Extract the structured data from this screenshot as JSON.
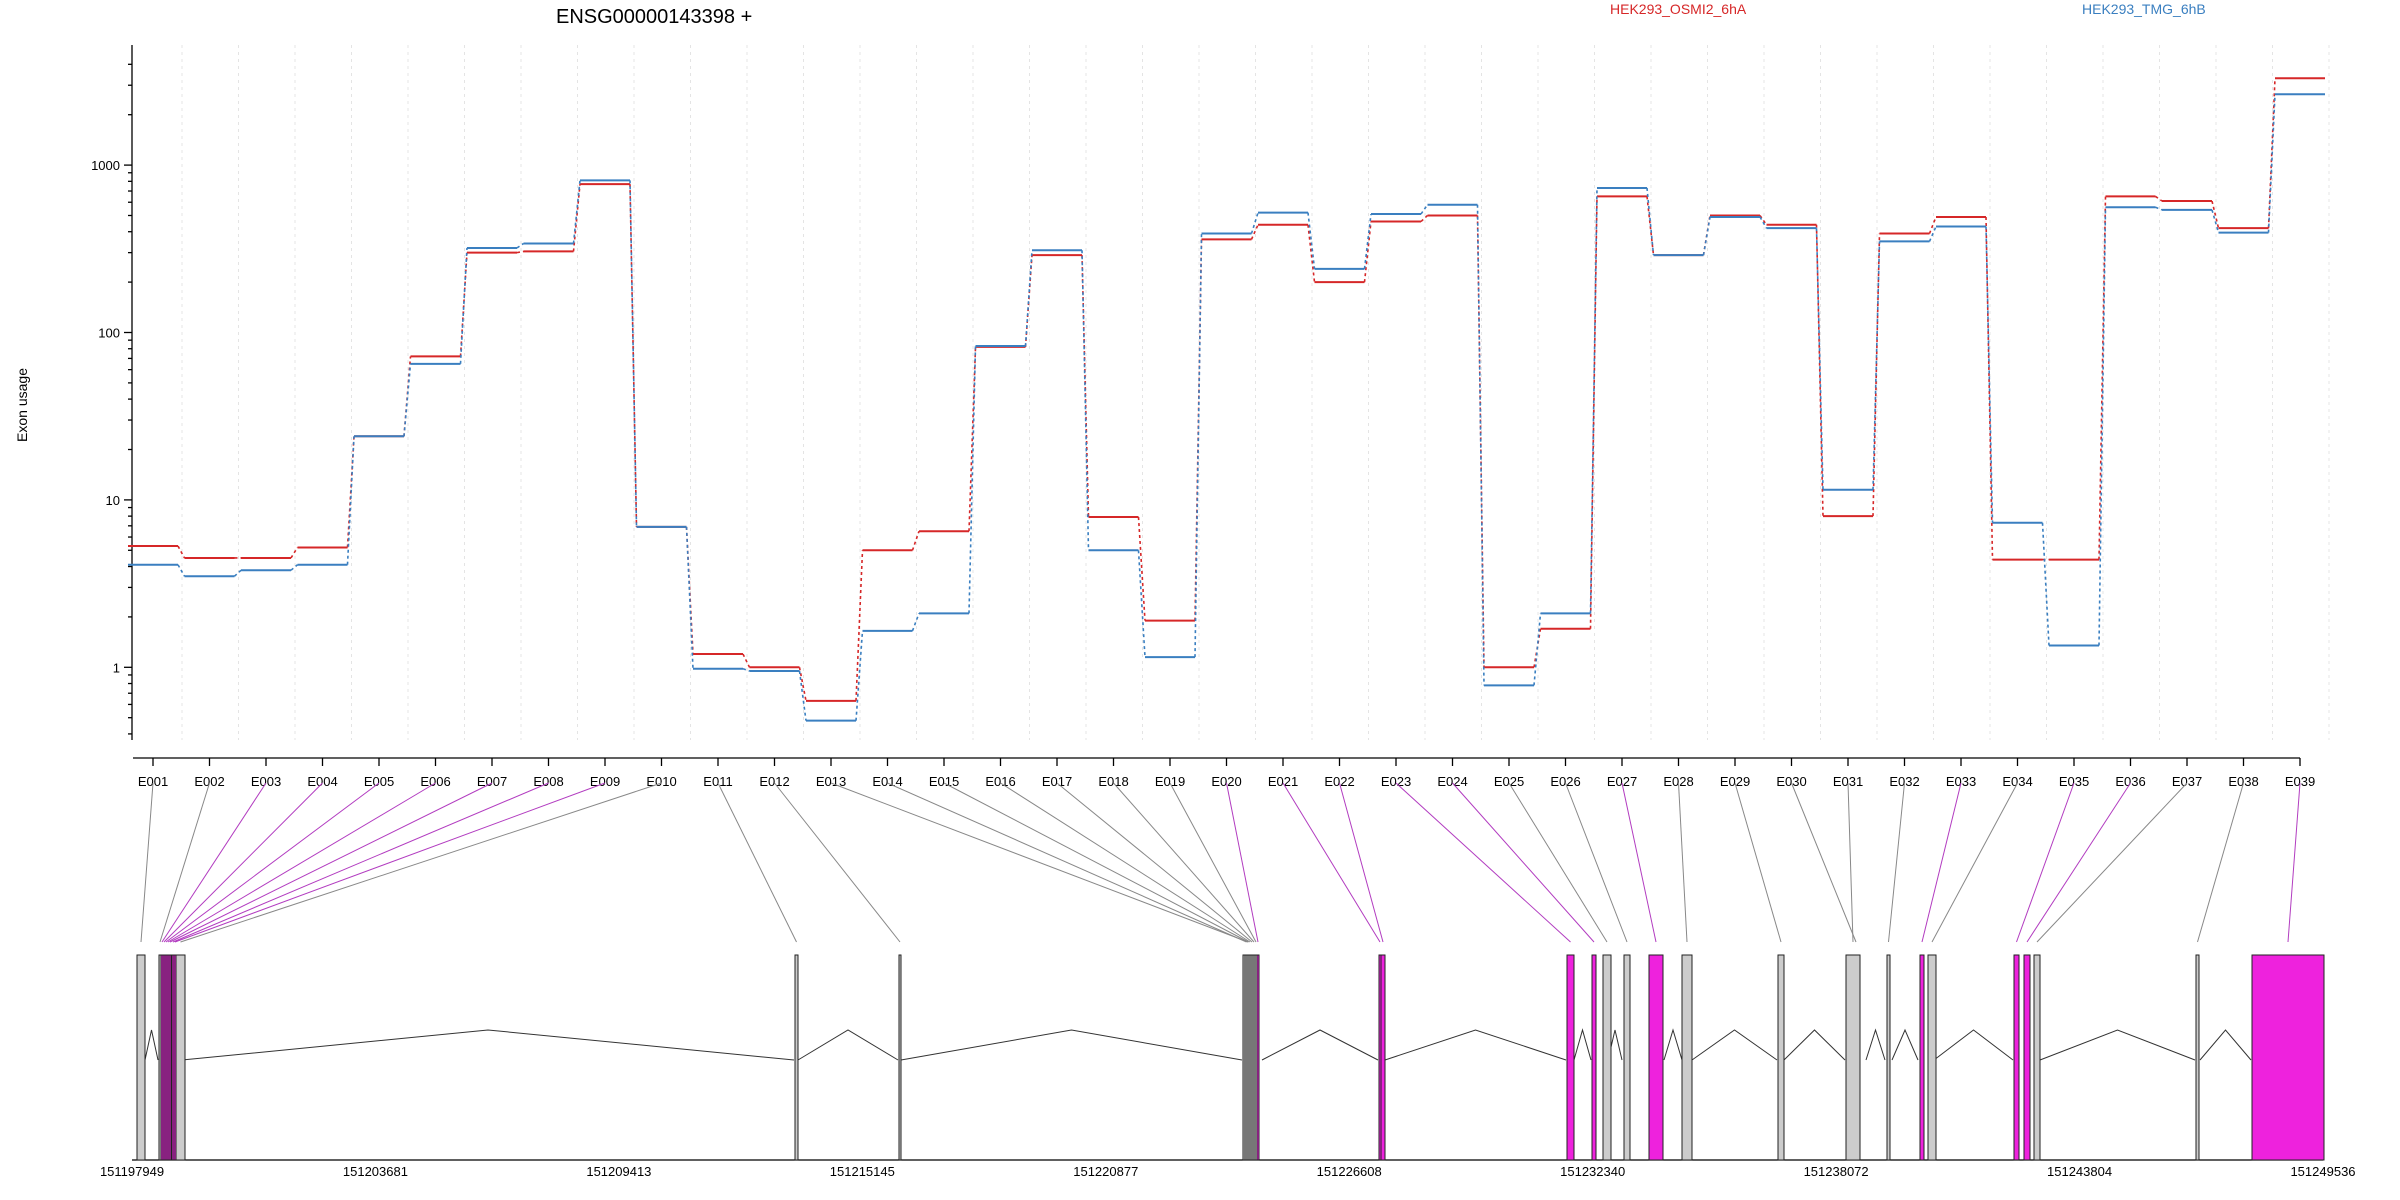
{
  "chart_data": {
    "type": "line",
    "title": "ENSG00000143398 +",
    "ylabel": "Exon usage",
    "xlabel": "",
    "y_scale": "log",
    "ylim": [
      0.35,
      4200
    ],
    "y_ticks": [
      1,
      10,
      100,
      1000
    ],
    "grid": true,
    "legend_placement": "top",
    "categories": [
      "E001",
      "E002",
      "E003",
      "E004",
      "E005",
      "E006",
      "E007",
      "E008",
      "E009",
      "E010",
      "E011",
      "E012",
      "E013",
      "E014",
      "E015",
      "E016",
      "E017",
      "E018",
      "E019",
      "E020",
      "E021",
      "E022",
      "E023",
      "E024",
      "E025",
      "E026",
      "E027",
      "E028",
      "E029",
      "E030",
      "E031",
      "E032",
      "E033",
      "E034",
      "E035",
      "E036",
      "E037",
      "E038",
      "E039"
    ],
    "series": [
      {
        "name": "HEK293_OSMI2_6hA",
        "color": "#d62728",
        "values": [
          5.3,
          4.5,
          4.5,
          5.2,
          24,
          72,
          300,
          305,
          770,
          6.9,
          1.2,
          1.0,
          0.63,
          5.0,
          6.5,
          82,
          290,
          7.9,
          1.9,
          360,
          440,
          200,
          460,
          500,
          1.0,
          1.7,
          650,
          290,
          500,
          440,
          8.0,
          390,
          490,
          4.4,
          4.4,
          650,
          610,
          420,
          3300
        ]
      },
      {
        "name": "HEK293_TMG_6hB",
        "color": "#3a7fc0",
        "values": [
          4.1,
          3.5,
          3.8,
          4.1,
          24,
          65,
          320,
          340,
          810,
          6.9,
          0.98,
          0.95,
          0.48,
          1.65,
          2.1,
          83,
          310,
          5.0,
          1.15,
          390,
          520,
          240,
          510,
          580,
          0.78,
          2.1,
          730,
          290,
          490,
          420,
          11.5,
          350,
          430,
          7.3,
          1.35,
          560,
          540,
          395,
          2650
        ]
      }
    ],
    "gene_model": {
      "coordinate_ticks": [
        "151197949",
        "151203681",
        "151209413",
        "151215145",
        "151220877",
        "151226608",
        "151232340",
        "151238072",
        "151243804",
        "151249536"
      ],
      "exon_highlight_color": "#ee22dd",
      "exon_default_color": "#cccccc",
      "highlighted_exons": [
        "E003",
        "E004",
        "E005",
        "E006",
        "E007",
        "E008",
        "E009",
        "E020",
        "E021",
        "E022",
        "E023",
        "E024",
        "E027",
        "E033",
        "E035",
        "E036",
        "E039"
      ]
    }
  }
}
